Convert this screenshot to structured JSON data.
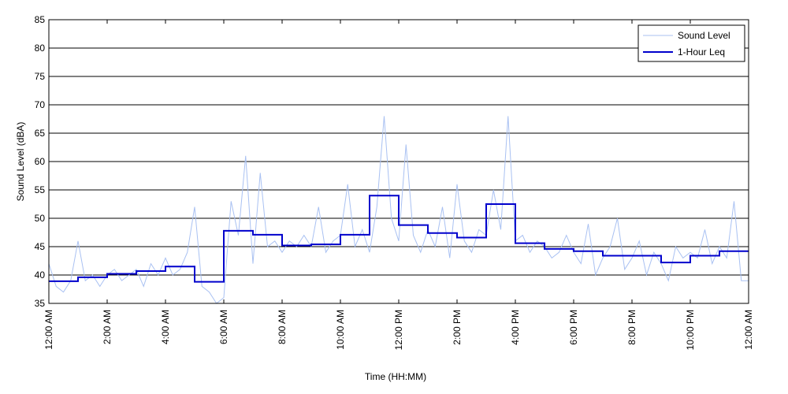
{
  "chart_data": {
    "type": "line",
    "xlabel": "Time (HH:MM)",
    "ylabel": "Sound Level (dBA)",
    "xlim": [
      0,
      24
    ],
    "ylim": [
      35,
      85
    ],
    "xticks": [
      {
        "value": 0,
        "label": "12:00 AM"
      },
      {
        "value": 2,
        "label": "2:00 AM"
      },
      {
        "value": 4,
        "label": "4:00 AM"
      },
      {
        "value": 6,
        "label": "6:00 AM"
      },
      {
        "value": 8,
        "label": "8:00 AM"
      },
      {
        "value": 10,
        "label": "10:00 AM"
      },
      {
        "value": 12,
        "label": "12:00 PM"
      },
      {
        "value": 14,
        "label": "2:00 PM"
      },
      {
        "value": 16,
        "label": "4:00 PM"
      },
      {
        "value": 18,
        "label": "6:00 PM"
      },
      {
        "value": 20,
        "label": "8:00 PM"
      },
      {
        "value": 22,
        "label": "10:00 PM"
      },
      {
        "value": 24,
        "label": "12:00 AM"
      }
    ],
    "yticks": [
      35,
      40,
      45,
      50,
      55,
      60,
      65,
      70,
      75,
      80,
      85
    ],
    "grid": true,
    "legend": "upper right",
    "series": [
      {
        "name": "Sound Level",
        "color": "#a9c1f2",
        "step": false,
        "x": [
          0,
          0.25,
          0.5,
          0.75,
          1,
          1.25,
          1.5,
          1.75,
          2,
          2.25,
          2.5,
          2.75,
          3,
          3.25,
          3.5,
          3.75,
          4,
          4.25,
          4.5,
          4.75,
          5,
          5.25,
          5.5,
          5.75,
          6,
          6.25,
          6.5,
          6.75,
          7,
          7.25,
          7.5,
          7.75,
          8,
          8.25,
          8.5,
          8.75,
          9,
          9.25,
          9.5,
          9.75,
          10,
          10.25,
          10.5,
          10.75,
          11,
          11.25,
          11.5,
          11.75,
          12,
          12.25,
          12.5,
          12.75,
          13,
          13.25,
          13.5,
          13.75,
          14,
          14.25,
          14.5,
          14.75,
          15,
          15.25,
          15.5,
          15.75,
          16,
          16.25,
          16.5,
          16.75,
          17,
          17.25,
          17.5,
          17.75,
          18,
          18.25,
          18.5,
          18.75,
          19,
          19.25,
          19.5,
          19.75,
          20,
          20.25,
          20.5,
          20.75,
          21,
          21.25,
          21.5,
          21.75,
          22,
          22.25,
          22.5,
          22.75,
          23,
          23.25,
          23.5,
          23.75,
          24
        ],
        "values": [
          42,
          38,
          37,
          39,
          46,
          39,
          40,
          38,
          40,
          41,
          39,
          40,
          41,
          38,
          42,
          40,
          43,
          40,
          41,
          44,
          52,
          38,
          37,
          35,
          36,
          53,
          47,
          61,
          42,
          58,
          45,
          46,
          44,
          46,
          45,
          47,
          45,
          52,
          44,
          46,
          47,
          56,
          45,
          48,
          44,
          52,
          68,
          50,
          46,
          63,
          47,
          44,
          48,
          45,
          52,
          43,
          56,
          46,
          44,
          48,
          47,
          55,
          48,
          68,
          46,
          47,
          44,
          46,
          45,
          43,
          44,
          47,
          44,
          42,
          49,
          40,
          43,
          45,
          50,
          41,
          43,
          46,
          40,
          44,
          42,
          39,
          45,
          43,
          44,
          43,
          48,
          42,
          45,
          43,
          53,
          39,
          39
        ]
      },
      {
        "name": "1-Hour Leq",
        "color": "#0000cc",
        "step": true,
        "x": [
          0,
          1,
          2,
          3,
          4,
          5,
          6,
          7,
          8,
          9,
          10,
          11,
          12,
          13,
          14,
          15,
          16,
          17,
          18,
          19,
          20,
          21,
          22,
          23
        ],
        "values": [
          38.9,
          39.6,
          40.2,
          40.7,
          41.5,
          38.8,
          47.8,
          47.1,
          45.2,
          45.4,
          47.1,
          54.0,
          48.8,
          47.4,
          46.6,
          52.5,
          45.6,
          44.6,
          44.2,
          43.4,
          43.4,
          42.2,
          43.4,
          44.2
        ]
      }
    ]
  }
}
